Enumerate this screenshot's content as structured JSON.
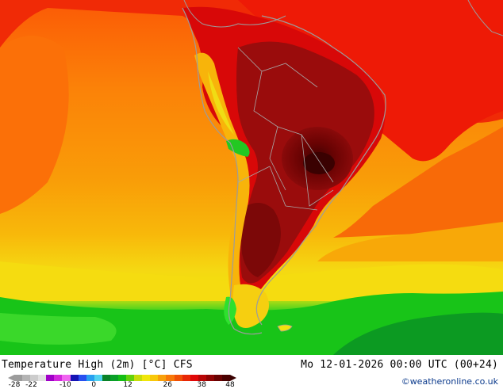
{
  "map": {
    "region": "South America",
    "colors": {
      "extreme_hot": "#5a0303",
      "very_hot": "#8a0a0a",
      "hot": "#e80808",
      "warm_orange_red": "#f42a05",
      "warm_orange": "#fb6a08",
      "orange": "#f99508",
      "yellow_orange": "#f8b80a",
      "yellow": "#f5da12",
      "green": "#10b810",
      "light_green": "#2ee22e",
      "dark_green": "#0a8c2a",
      "coastline": "#9c9c9c"
    }
  },
  "footer": {
    "title": "Temperature High (2m) [°C] CFS",
    "valid_time": "Mo 12-01-2026 00:00 UTC (00+24)",
    "credit": "©weatheronline.co.uk"
  },
  "legend": {
    "tick_labels": [
      "-28",
      "-22",
      "-10",
      "0",
      "12",
      "26",
      "38",
      "48"
    ],
    "tick_values": [
      -28,
      -22,
      -10,
      0,
      12,
      26,
      38,
      48
    ],
    "range": [
      -28,
      48
    ],
    "colors": [
      "#9c9c9c",
      "#b4b4b4",
      "#cccccc",
      "#e0e0e0",
      "#a000c8",
      "#d228dc",
      "#f064f0",
      "#1414b4",
      "#2850f0",
      "#28a0f0",
      "#50d2f0",
      "#0a8228",
      "#0aa028",
      "#14be14",
      "#64d20a",
      "#c8dc0a",
      "#f0e60a",
      "#f8c80a",
      "#f8a00a",
      "#f87808",
      "#f05006",
      "#e82806",
      "#e00808",
      "#b80606",
      "#900404",
      "#6a0202",
      "#4a0101"
    ]
  }
}
